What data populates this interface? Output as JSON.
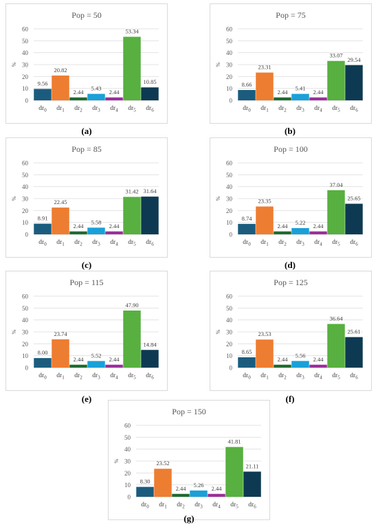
{
  "colors": [
    "#1b5c7e",
    "#ed7d31",
    "#1f6b2f",
    "#1aa0d8",
    "#9b2f9b",
    "#57b03f",
    "#0d3a52"
  ],
  "chart_data": [
    {
      "type": "bar",
      "title": "Pop = 50",
      "caption": "a",
      "ylabel": "%",
      "ylim": [
        0,
        60
      ],
      "yticks": [
        "0",
        "10",
        "20",
        "30",
        "40",
        "50",
        "60"
      ],
      "categories": [
        "dr0",
        "dr1",
        "dr2",
        "dr3",
        "dr4",
        "dr5",
        "dr6"
      ],
      "values": [
        9.56,
        20.82,
        2.44,
        5.43,
        2.44,
        53.34,
        10.85
      ],
      "labels": [
        "9.56",
        "20.82",
        "2.44",
        "5.43",
        "2.44",
        "53.34",
        "10.85"
      ]
    },
    {
      "type": "bar",
      "title": "Pop = 75",
      "caption": "b",
      "ylabel": "%",
      "ylim": [
        0,
        60
      ],
      "yticks": [
        "0",
        "10",
        "20",
        "30",
        "40",
        "50",
        "60"
      ],
      "categories": [
        "dr0",
        "dr1",
        "dr2",
        "dr3",
        "dr4",
        "dr5",
        "dr6"
      ],
      "values": [
        8.66,
        23.31,
        2.44,
        5.41,
        2.44,
        33.07,
        29.54
      ],
      "labels": [
        "8.66",
        "23.31",
        "2.44",
        "5.41",
        "2.44",
        "33.07",
        "29.54"
      ]
    },
    {
      "type": "bar",
      "title": "Pop = 85",
      "caption": "c",
      "ylabel": "%",
      "ylim": [
        0,
        60
      ],
      "yticks": [
        "0",
        "10",
        "20",
        "30",
        "40",
        "50",
        "60"
      ],
      "categories": [
        "dr0",
        "dr1",
        "dr2",
        "dr3",
        "dr4",
        "dr5",
        "dr6"
      ],
      "values": [
        8.91,
        22.45,
        2.44,
        5.58,
        2.44,
        31.42,
        31.64
      ],
      "labels": [
        "8.91",
        "22.45",
        "2.44",
        "5.58",
        "2.44",
        "31.42",
        "31.64"
      ]
    },
    {
      "type": "bar",
      "title": "Pop = 100",
      "caption": "d",
      "ylabel": "%",
      "ylim": [
        0,
        60
      ],
      "yticks": [
        "0",
        "10",
        "20",
        "30",
        "40",
        "50",
        "60"
      ],
      "categories": [
        "dr0",
        "dr1",
        "dr2",
        "dr3",
        "dr4",
        "dr5",
        "dr6"
      ],
      "values": [
        8.74,
        23.35,
        2.44,
        5.22,
        2.44,
        37.04,
        25.65
      ],
      "labels": [
        "8.74",
        "23.35",
        "2.44",
        "5.22",
        "2.44",
        "37.04",
        "25.65"
      ]
    },
    {
      "type": "bar",
      "title": "Pop = 115",
      "caption": "e",
      "ylabel": "%",
      "ylim": [
        0,
        60
      ],
      "yticks": [
        "0",
        "10",
        "20",
        "30",
        "40",
        "50",
        "60"
      ],
      "categories": [
        "dr0",
        "dr1",
        "dr2",
        "dr3",
        "dr4",
        "dr5",
        "dr6"
      ],
      "values": [
        8.0,
        23.74,
        2.44,
        5.52,
        2.44,
        47.9,
        14.84
      ],
      "labels": [
        "8.00",
        "23.74",
        "2.44",
        "5.52",
        "2.44",
        "47.90",
        "14.84"
      ]
    },
    {
      "type": "bar",
      "title": "Pop = 125",
      "caption": "f",
      "ylabel": "%",
      "ylim": [
        0,
        60
      ],
      "yticks": [
        "0",
        "10",
        "20",
        "30",
        "40",
        "50",
        "60"
      ],
      "categories": [
        "dr0",
        "dr1",
        "dr2",
        "dr3",
        "dr4",
        "dr5",
        "dr6"
      ],
      "values": [
        8.65,
        23.53,
        2.44,
        5.56,
        2.44,
        36.64,
        25.61
      ],
      "labels": [
        "8.65",
        "23.53",
        "2.44",
        "5.56",
        "2.44",
        "36.64",
        "25.61"
      ]
    },
    {
      "type": "bar",
      "title": "Pop = 150",
      "caption": "g",
      "ylabel": "%",
      "ylim": [
        0,
        60
      ],
      "yticks": [
        "0",
        "10",
        "20",
        "30",
        "40",
        "50",
        "60"
      ],
      "categories": [
        "dr0",
        "dr1",
        "dr2",
        "dr3",
        "dr4",
        "dr5",
        "dr6"
      ],
      "values": [
        8.3,
        23.52,
        2.44,
        5.26,
        2.44,
        41.81,
        21.11
      ],
      "labels": [
        "8.30",
        "23.52",
        "2.44",
        "5.26",
        "2.44",
        "41.81",
        "21.11"
      ]
    }
  ]
}
